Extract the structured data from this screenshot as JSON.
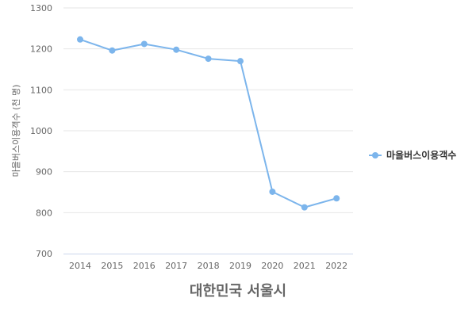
{
  "chart_data": {
    "type": "line",
    "x": [
      "2014",
      "2015",
      "2016",
      "2017",
      "2018",
      "2019",
      "2020",
      "2021",
      "2022"
    ],
    "series": [
      {
        "name": "마을버스이용객수",
        "values": [
          1223,
          1196,
          1212,
          1198,
          1176,
          1170,
          851,
          813,
          835
        ],
        "color": "#7cb5ec"
      }
    ],
    "xlabel": "대한민국 서울시",
    "ylabel": "마을버스이용객수 (천 명)",
    "ylim": [
      700,
      1300
    ],
    "yticks": [
      "700",
      "800",
      "900",
      "1000",
      "1100",
      "1200",
      "1300"
    ],
    "grid": true,
    "legend_position": "right"
  }
}
